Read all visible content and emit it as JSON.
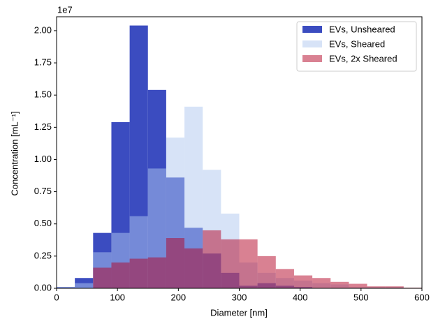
{
  "chart_data": {
    "type": "histogram",
    "x_label": "Diameter [nm]",
    "y_label": "Concentration [mL⁻¹]",
    "y_offset_label": "1e7",
    "bins": [
      0,
      30,
      60,
      90,
      120,
      150,
      180,
      210,
      240,
      270,
      300,
      330,
      360,
      390,
      420,
      450,
      480,
      510,
      540,
      570,
      600
    ],
    "series": [
      {
        "name": "EVs, Unsheared",
        "color": "#3b4cc0",
        "values": [
          0.01,
          0.08,
          0.43,
          1.29,
          2.04,
          1.54,
          0.86,
          0.47,
          0.27,
          0.12,
          0.02,
          0.04,
          0.02,
          0.01,
          0,
          0,
          0,
          0,
          0,
          0
        ]
      },
      {
        "name": "EVs, Sheared",
        "color": "#b0c8ef",
        "values": [
          0.01,
          0.04,
          0.28,
          0.43,
          0.56,
          0.93,
          1.17,
          1.41,
          0.92,
          0.58,
          0.2,
          0.12,
          0.08,
          0.06,
          0.04,
          0.03,
          0.01,
          0.01,
          0.01,
          0
        ]
      },
      {
        "name": "EVs, 2x Sheared",
        "color": "#b40426",
        "values": [
          0,
          0,
          0.16,
          0.2,
          0.23,
          0.24,
          0.39,
          0.31,
          0.45,
          0.38,
          0.38,
          0.25,
          0.15,
          0.1,
          0.08,
          0.05,
          0.035,
          0.015,
          0.015,
          0.005
        ]
      }
    ],
    "xlim": [
      0,
      600
    ],
    "xticks": [
      0,
      100,
      200,
      300,
      400,
      500,
      600
    ],
    "ylim": [
      0,
      2.108
    ],
    "yticks": [
      {
        "value": 0,
        "label": "0.00"
      },
      {
        "value": 0.25,
        "label": "0.25"
      },
      {
        "value": 0.5,
        "label": "0.50"
      },
      {
        "value": 0.75,
        "label": "0.75"
      },
      {
        "value": 1,
        "label": "1.00"
      },
      {
        "value": 1.25,
        "label": "1.25"
      },
      {
        "value": 1.5,
        "label": "1.50"
      },
      {
        "value": 1.75,
        "label": "1.75"
      },
      {
        "value": 2,
        "label": "2.00"
      }
    ],
    "legend": "upper-right"
  }
}
